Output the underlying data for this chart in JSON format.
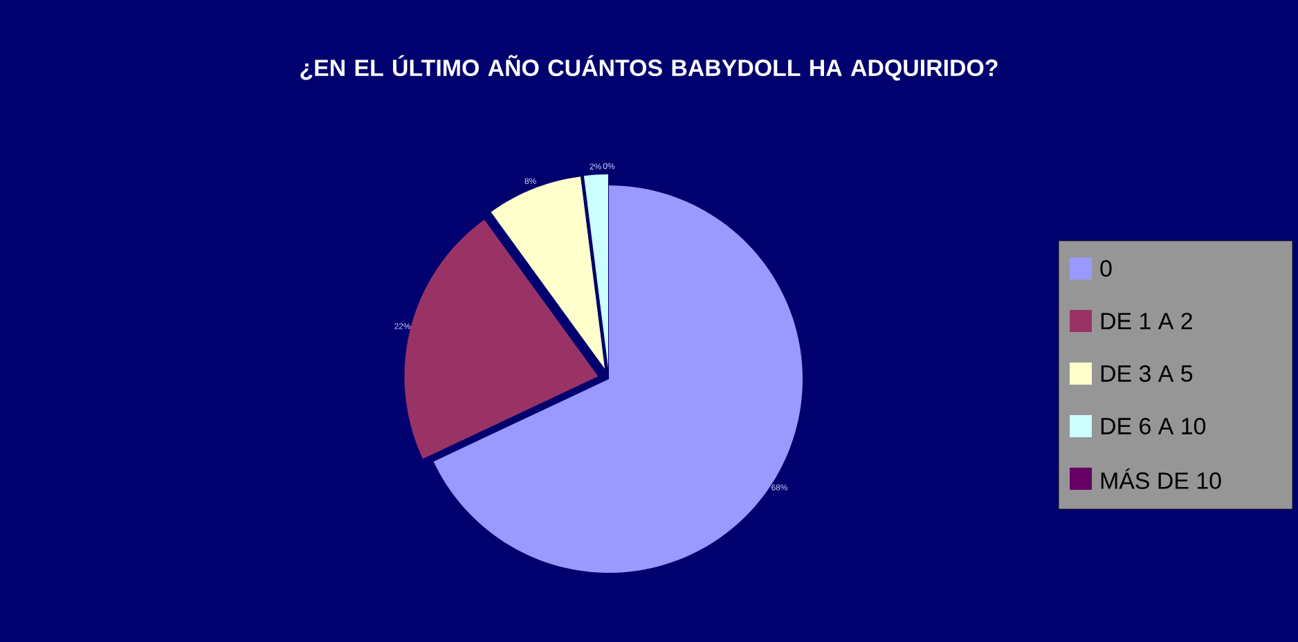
{
  "chart_data": {
    "type": "pie",
    "title": "¿EN EL ÚLTIMO AÑO CUÁNTOS BABYDOLL HA ADQUIRIDO?",
    "categories": [
      "0",
      "DE 1 A 2",
      "DE 3 A 5",
      "DE 6 A 10",
      "MÁS DE 10"
    ],
    "values": [
      68,
      22,
      8,
      2,
      0
    ],
    "colors": [
      "#9999ff",
      "#993366",
      "#ffffcc",
      "#ccffff",
      "#660066"
    ],
    "value_labels": [
      "68%",
      "22%",
      "8%",
      "2%",
      "0%"
    ],
    "legend": "right"
  }
}
